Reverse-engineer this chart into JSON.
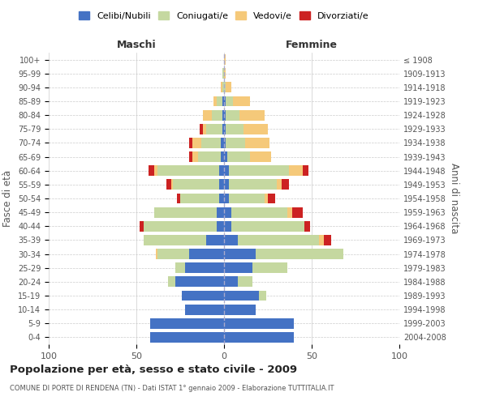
{
  "age_groups": [
    "0-4",
    "5-9",
    "10-14",
    "15-19",
    "20-24",
    "25-29",
    "30-34",
    "35-39",
    "40-44",
    "45-49",
    "50-54",
    "55-59",
    "60-64",
    "65-69",
    "70-74",
    "75-79",
    "80-84",
    "85-89",
    "90-94",
    "95-99",
    "100+"
  ],
  "birth_years": [
    "2004-2008",
    "1999-2003",
    "1994-1998",
    "1989-1993",
    "1984-1988",
    "1979-1983",
    "1974-1978",
    "1969-1973",
    "1964-1968",
    "1959-1963",
    "1954-1958",
    "1949-1953",
    "1944-1948",
    "1939-1943",
    "1934-1938",
    "1929-1933",
    "1924-1928",
    "1919-1923",
    "1914-1918",
    "1909-1913",
    "≤ 1908"
  ],
  "colors": {
    "celibe": "#4472C4",
    "coniugato": "#c5d8a0",
    "vedovo": "#f5c97a",
    "divorziato": "#cc2222"
  },
  "males": {
    "celibe": [
      42,
      42,
      22,
      24,
      28,
      22,
      20,
      10,
      4,
      4,
      3,
      3,
      3,
      2,
      2,
      1,
      1,
      1,
      0,
      0,
      0
    ],
    "coniugato": [
      0,
      0,
      0,
      0,
      4,
      6,
      18,
      36,
      42,
      36,
      22,
      26,
      35,
      13,
      11,
      9,
      6,
      3,
      1,
      1,
      0
    ],
    "vedovo": [
      0,
      0,
      0,
      0,
      0,
      0,
      1,
      0,
      0,
      0,
      0,
      1,
      2,
      3,
      5,
      2,
      5,
      2,
      1,
      0,
      0
    ],
    "divorziato": [
      0,
      0,
      0,
      0,
      0,
      0,
      0,
      0,
      2,
      0,
      2,
      3,
      3,
      2,
      2,
      2,
      0,
      0,
      0,
      0,
      0
    ]
  },
  "females": {
    "nubile": [
      40,
      40,
      18,
      20,
      8,
      16,
      18,
      8,
      4,
      4,
      3,
      3,
      3,
      2,
      1,
      1,
      1,
      1,
      0,
      0,
      0
    ],
    "coniugata": [
      0,
      0,
      0,
      4,
      8,
      20,
      50,
      46,
      42,
      32,
      20,
      27,
      34,
      13,
      11,
      10,
      8,
      4,
      1,
      0,
      0
    ],
    "vedova": [
      0,
      0,
      0,
      0,
      0,
      0,
      0,
      3,
      0,
      3,
      2,
      3,
      8,
      12,
      14,
      14,
      14,
      10,
      3,
      1,
      1
    ],
    "divorziata": [
      0,
      0,
      0,
      0,
      0,
      0,
      0,
      4,
      3,
      6,
      4,
      4,
      3,
      0,
      0,
      0,
      0,
      0,
      0,
      0,
      0
    ]
  },
  "title": "Popolazione per età, sesso e stato civile - 2009",
  "subtitle": "COMUNE DI PORTE DI RENDENA (TN) - Dati ISTAT 1° gennaio 2009 - Elaborazione TUTTITALIA.IT",
  "xlabel_left": "Maschi",
  "xlabel_right": "Femmine",
  "ylabel_left": "Fasce di età",
  "ylabel_right": "Anni di nascita",
  "xlim": 100,
  "legend_labels": [
    "Celibi/Nubili",
    "Coniugati/e",
    "Vedovi/e",
    "Divorziati/e"
  ],
  "background_color": "#ffffff",
  "grid_color": "#cccccc"
}
